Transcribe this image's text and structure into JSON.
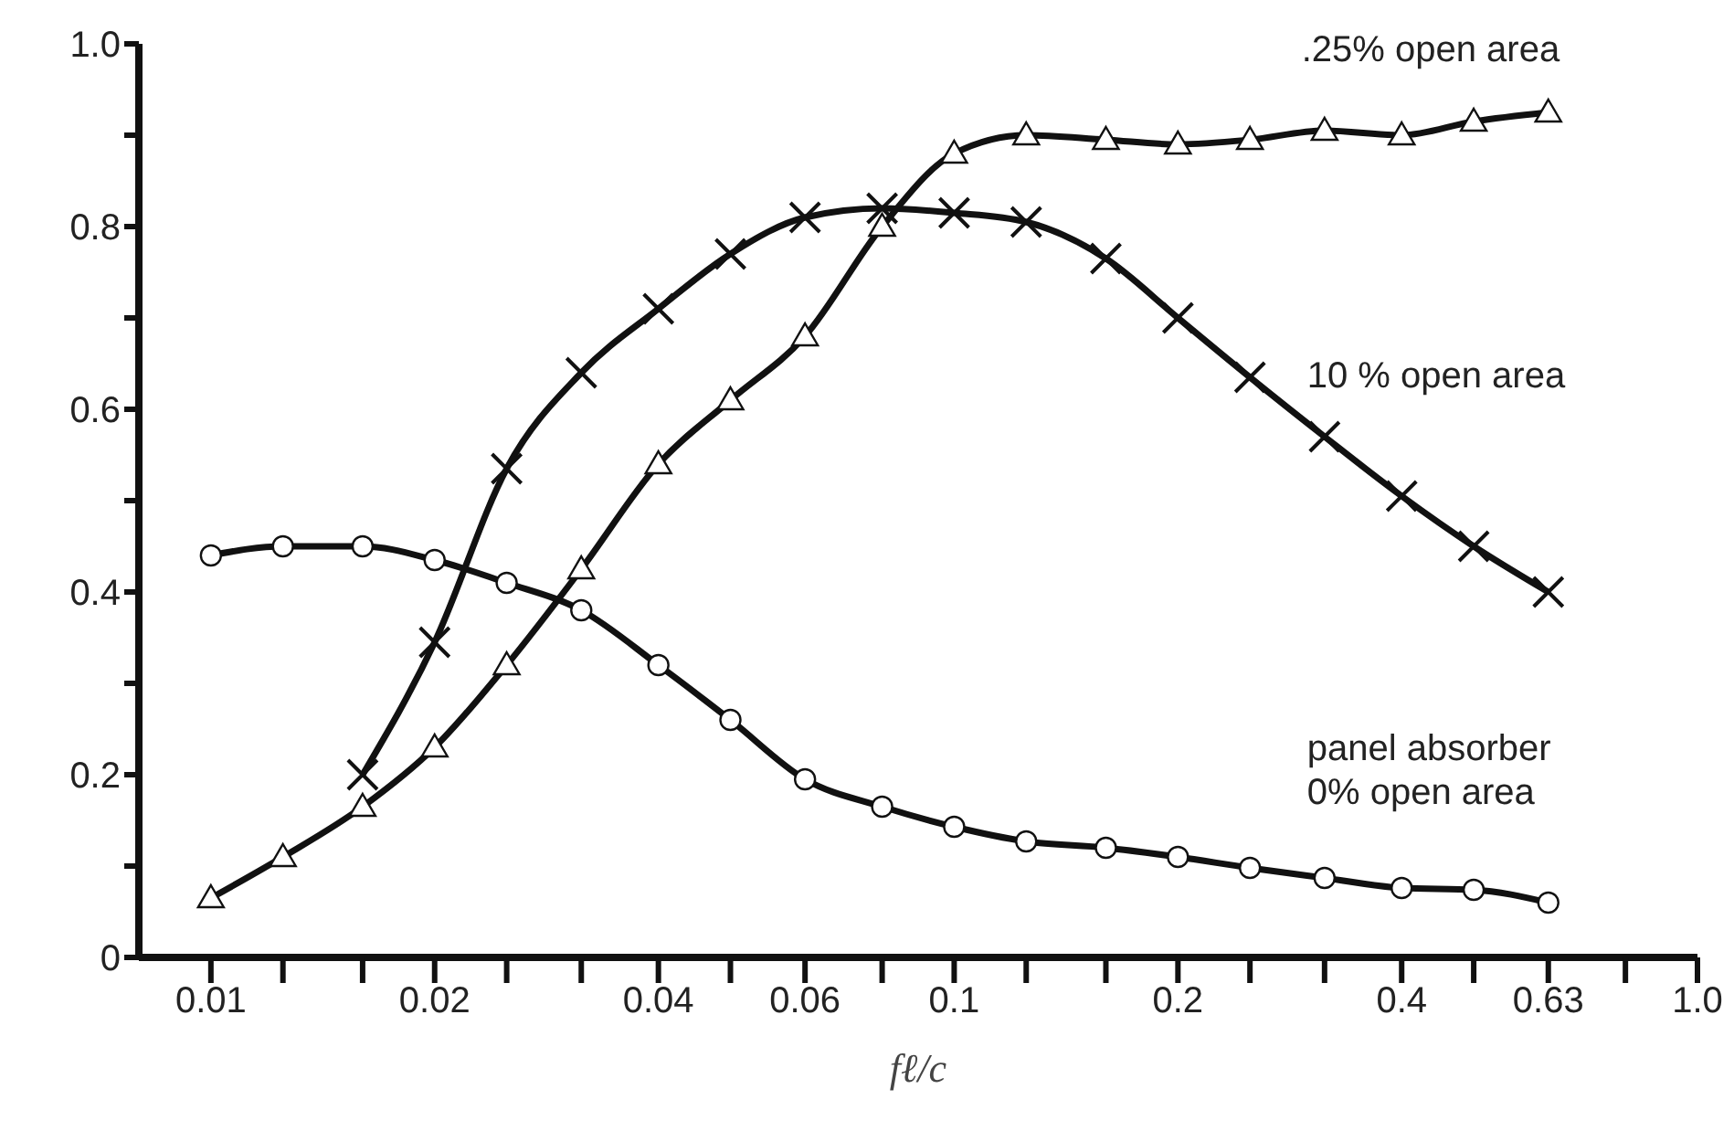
{
  "chart_data": {
    "type": "line",
    "xlabel": "fℓ/c",
    "log": "x",
    "grid": false,
    "legend": false,
    "xlim": [
      0.008,
      1.0
    ],
    "ylim": [
      0,
      1.0
    ],
    "xticks": [
      0.01,
      {
        "value": 0.0125,
        "label": null
      },
      {
        "value": 0.016,
        "label": null
      },
      0.02,
      {
        "value": 0.025,
        "label": null
      },
      {
        "value": 0.0315,
        "label": null
      },
      0.04,
      {
        "value": 0.05,
        "label": null
      },
      {
        "value": 0.063,
        "label": "0.06"
      },
      {
        "value": 0.08,
        "label": null
      },
      0.1,
      {
        "value": 0.125,
        "label": null
      },
      {
        "value": 0.16,
        "label": null
      },
      0.2,
      {
        "value": 0.25,
        "label": null
      },
      {
        "value": 0.315,
        "label": null
      },
      0.4,
      {
        "value": 0.5,
        "label": null
      },
      0.63,
      {
        "value": 0.8,
        "label": null
      },
      {
        "value": 1.0,
        "label": "1.0"
      }
    ],
    "yticks": [
      0,
      {
        "value": 0.1,
        "label": null
      },
      0.2,
      {
        "value": 0.3,
        "label": null
      },
      0.4,
      {
        "value": 0.5,
        "label": null
      },
      0.6,
      {
        "value": 0.7,
        "label": null
      },
      0.8,
      {
        "value": 0.9,
        "label": null
      },
      {
        "value": 1.0,
        "label": "1.0"
      }
    ],
    "x": [
      0.01,
      0.0125,
      0.016,
      0.02,
      0.025,
      0.0315,
      0.04,
      0.05,
      0.063,
      0.08,
      0.1,
      0.125,
      0.16,
      0.2,
      0.25,
      0.315,
      0.4,
      0.5,
      0.63
    ],
    "series": [
      {
        "name": ".25% open area",
        "color": "#111111",
        "marker": "triangle",
        "values": [
          0.065,
          0.11,
          0.165,
          0.23,
          0.32,
          0.425,
          0.54,
          0.61,
          0.68,
          0.8,
          0.88,
          0.9,
          0.895,
          0.89,
          0.895,
          0.905,
          0.9,
          0.915,
          0.925
        ]
      },
      {
        "name": "10 % open area",
        "color": "#111111",
        "marker": "cross",
        "values": [
          null,
          null,
          0.2,
          0.345,
          0.535,
          0.64,
          0.71,
          0.77,
          0.81,
          0.82,
          0.815,
          0.805,
          0.765,
          0.7,
          0.635,
          0.57,
          0.505,
          0.45,
          0.4
        ]
      },
      {
        "name": "panel absorber\n0% open area",
        "color": "#111111",
        "marker": "circle",
        "values": [
          0.44,
          0.45,
          0.45,
          0.435,
          0.41,
          0.38,
          0.32,
          0.26,
          0.195,
          0.165,
          0.143,
          0.127,
          0.12,
          0.11,
          0.098,
          0.087,
          0.076,
          0.074,
          0.06
        ]
      }
    ]
  }
}
